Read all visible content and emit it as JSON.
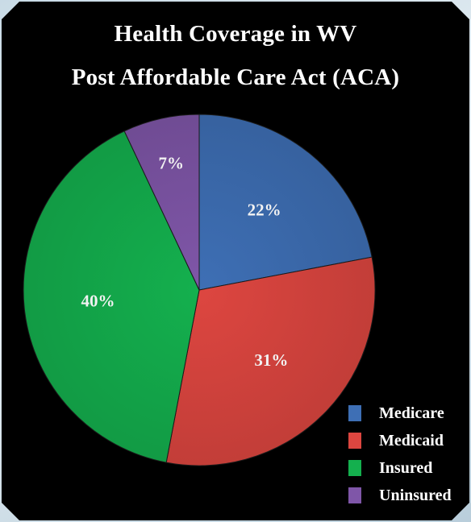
{
  "chart_data": {
    "type": "pie",
    "title": "Health Coverage in WV",
    "subtitle": "Post Affordable Care Act (ACA)",
    "categories": [
      "Medicare",
      "Medicaid",
      "Insured",
      "Uninsured"
    ],
    "values": [
      22,
      31,
      40,
      7
    ],
    "labels": [
      "22%",
      "31%",
      "40%",
      "7%"
    ],
    "colors": [
      "#3e6fb5",
      "#dd4640",
      "#14b04e",
      "#7f56a8"
    ],
    "legend_position": "bottom-right"
  }
}
